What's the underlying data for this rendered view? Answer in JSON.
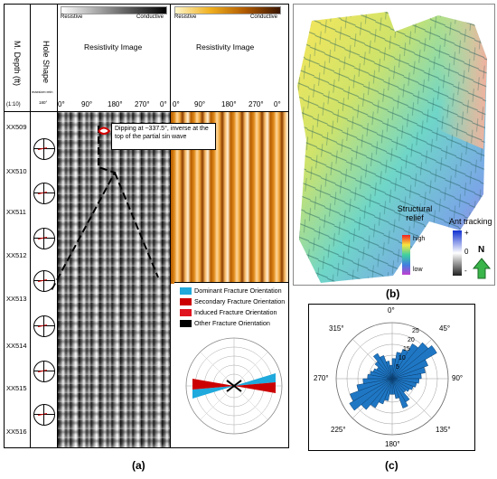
{
  "log_panel": {
    "columns": {
      "depth_header": "M. Depth (ft)",
      "depth_scale": "(1:10)",
      "hole_shape_header": "Hole Shape",
      "hole_small_text": "maxsize=min",
      "hole_small_deg": "180°",
      "resistivity_header_1": "Resistivity Image",
      "resistivity_header_2": "Resistivity Image"
    },
    "colorbars": {
      "left": {
        "low": "Resistive",
        "high": "Conductive"
      },
      "right": {
        "low": "Resistive",
        "high": "Conductive"
      }
    },
    "azimuth_ticks": [
      "0°",
      "90°",
      "180°",
      "270°",
      "0°"
    ],
    "depths": [
      "XX509",
      "XX510",
      "XX511",
      "XX512",
      "XX513",
      "XX514",
      "XX515",
      "XX516"
    ],
    "annotation": "Dipping at ~337.5°, inverse at the top of the partial sin wave",
    "legend": {
      "items": [
        {
          "label": "Dominant Fracture Orientation",
          "color": "#1fa9dc"
        },
        {
          "label": "Secondary Fracture Orientation",
          "color": "#cc0000"
        },
        {
          "label": "Induced Fracture Orientation",
          "color": "#e0141e"
        },
        {
          "label": "Other Fracture Orientation",
          "color": "#000000"
        }
      ]
    },
    "panel_label": "(a)"
  },
  "map_panel": {
    "relief_title": "Structural relief",
    "relief_high": "high",
    "relief_low": "low",
    "ant_title": "Ant tracking",
    "ant_plus": "+",
    "ant_zero": "0",
    "ant_minus": "-",
    "north": "N",
    "panel_label": "(b)"
  },
  "rose_panel": {
    "angle_labels": [
      "0°",
      "45°",
      "90°",
      "135°",
      "180°",
      "225°",
      "270°",
      "315°"
    ],
    "radial_labels": [
      "25",
      "20",
      "15",
      "10",
      "5"
    ],
    "color": "#1f77c4",
    "bins_deg": [
      0,
      10,
      20,
      30,
      40,
      50,
      60,
      70,
      80,
      90,
      100,
      110,
      120,
      130,
      140,
      150,
      160,
      170,
      180,
      190,
      200,
      210,
      220,
      230,
      240,
      250,
      260,
      270,
      280,
      290,
      300,
      310,
      320,
      330,
      340,
      350
    ],
    "bin_values": [
      9,
      12,
      14,
      18,
      21,
      23,
      17,
      15,
      13,
      12,
      11,
      10,
      9,
      8,
      12,
      14,
      9,
      7,
      7,
      10,
      12,
      15,
      18,
      22,
      20,
      16,
      13,
      11,
      10,
      9,
      8,
      10,
      13,
      11,
      8,
      6
    ],
    "panel_label": "(c)"
  }
}
